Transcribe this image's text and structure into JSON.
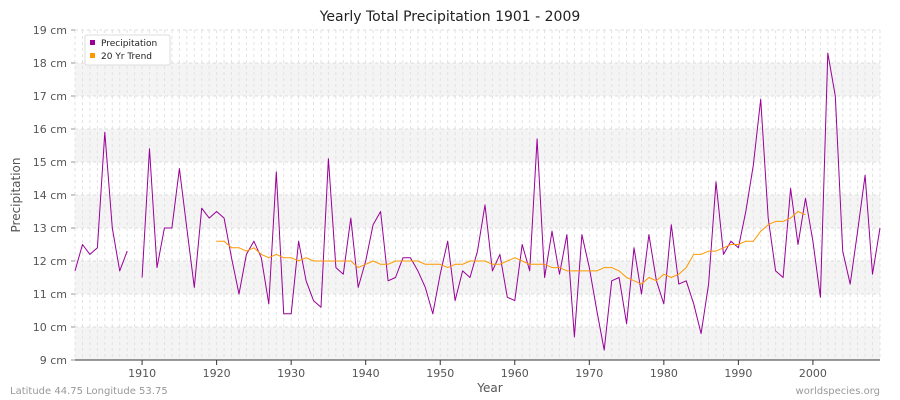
{
  "chart_data": {
    "type": "line",
    "title": "Yearly Total Precipitation 1901 - 2009",
    "xlabel": "Year",
    "ylabel": "Precipitation",
    "xlim": [
      1901,
      2009
    ],
    "ylim": [
      9,
      19
    ],
    "x_ticks": [
      1910,
      1920,
      1930,
      1940,
      1950,
      1960,
      1970,
      1980,
      1990,
      2000
    ],
    "y_ticks": [
      "9 cm",
      "10 cm",
      "11 cm",
      "12 cm",
      "13 cm",
      "14 cm",
      "15 cm",
      "16 cm",
      "17 cm",
      "18 cm",
      "19 cm"
    ],
    "grid": true,
    "legend_position": "top-left",
    "series": [
      {
        "name": "Precipitation",
        "color": "#990099",
        "x": [
          1901,
          1902,
          1903,
          1904,
          1905,
          1906,
          1907,
          1908,
          null,
          1910,
          1911,
          1912,
          1913,
          1914,
          1915,
          1916,
          1917,
          1918,
          1919,
          1920,
          1921,
          1922,
          1923,
          1924,
          1925,
          1926,
          1927,
          1928,
          1929,
          1930,
          1931,
          1932,
          1933,
          1934,
          1935,
          1936,
          1937,
          1938,
          1939,
          1940,
          1941,
          1942,
          1943,
          1944,
          1945,
          1946,
          1947,
          1948,
          1949,
          1950,
          1951,
          1952,
          1953,
          1954,
          1955,
          1956,
          1957,
          1958,
          1959,
          1960,
          1961,
          1962,
          1963,
          1964,
          1965,
          1966,
          1967,
          1968,
          1969,
          1970,
          1971,
          1972,
          1973,
          1974,
          1975,
          1976,
          1977,
          1978,
          1979,
          1980,
          1981,
          1982,
          1983,
          1984,
          1985,
          1986,
          1987,
          1988,
          1989,
          1990,
          1991,
          1992,
          1993,
          1994,
          1995,
          1996,
          1997,
          1998,
          1999,
          2000,
          2001,
          2002,
          2003,
          2004,
          2005,
          2006,
          2007,
          2008,
          2009
        ],
        "y": [
          11.7,
          12.5,
          12.2,
          12.4,
          15.9,
          13.0,
          11.7,
          12.3,
          null,
          11.5,
          15.4,
          11.8,
          13.0,
          13.0,
          14.8,
          13.0,
          11.2,
          13.6,
          13.3,
          13.5,
          13.3,
          12.1,
          11.0,
          12.2,
          12.6,
          12.1,
          10.7,
          14.7,
          10.4,
          10.4,
          12.6,
          11.4,
          10.8,
          10.6,
          15.1,
          11.8,
          11.6,
          13.3,
          11.2,
          12.0,
          13.1,
          13.5,
          11.4,
          11.5,
          12.1,
          12.1,
          11.7,
          11.2,
          10.4,
          11.6,
          12.6,
          10.8,
          11.7,
          11.5,
          12.3,
          13.7,
          11.7,
          12.2,
          10.9,
          10.8,
          12.5,
          11.7,
          15.7,
          11.5,
          12.9,
          11.6,
          12.8,
          9.7,
          12.8,
          11.8,
          10.5,
          9.3,
          11.4,
          11.5,
          10.1,
          12.4,
          11.0,
          12.8,
          11.4,
          10.7,
          13.1,
          11.3,
          11.4,
          10.7,
          9.8,
          11.3,
          14.4,
          12.2,
          12.6,
          12.4,
          13.5,
          14.9,
          16.9,
          13.3,
          11.7,
          11.5,
          14.2,
          12.5,
          13.9,
          12.6,
          10.9,
          18.3,
          17.0,
          12.3,
          11.3,
          12.9,
          14.6,
          11.6,
          13.0
        ]
      },
      {
        "name": "20 Yr Trend",
        "color": "#ff9900",
        "x": [
          1920,
          1921,
          1922,
          1923,
          1924,
          1925,
          1926,
          1927,
          1928,
          1929,
          1930,
          1931,
          1932,
          1933,
          1934,
          1935,
          1936,
          1937,
          1938,
          1939,
          1940,
          1941,
          1942,
          1943,
          1944,
          1945,
          1946,
          1947,
          1948,
          1949,
          1950,
          1951,
          1952,
          1953,
          1954,
          1955,
          1956,
          1957,
          1958,
          1959,
          1960,
          1961,
          1962,
          1963,
          1964,
          1965,
          1966,
          1967,
          1968,
          1969,
          1970,
          1971,
          1972,
          1973,
          1974,
          1975,
          1976,
          1977,
          1978,
          1979,
          1980,
          1981,
          1982,
          1983,
          1984,
          1985,
          1986,
          1987,
          1988,
          1989,
          1990,
          1991,
          1992,
          1993,
          1994,
          1995,
          1996,
          1997,
          1998,
          1999
        ],
        "y": [
          12.6,
          12.6,
          12.4,
          12.4,
          12.3,
          12.4,
          12.2,
          12.1,
          12.2,
          12.1,
          12.1,
          12.0,
          12.1,
          12.0,
          12.0,
          12.0,
          12.0,
          12.0,
          12.0,
          11.8,
          11.9,
          12.0,
          11.9,
          11.9,
          12.0,
          12.0,
          12.0,
          12.0,
          11.9,
          11.9,
          11.9,
          11.8,
          11.9,
          11.9,
          12.0,
          12.0,
          12.0,
          11.9,
          11.9,
          12.0,
          12.1,
          12.0,
          11.9,
          11.9,
          11.9,
          11.8,
          11.8,
          11.7,
          11.7,
          11.7,
          11.7,
          11.7,
          11.8,
          11.8,
          11.7,
          11.5,
          11.4,
          11.3,
          11.5,
          11.4,
          11.6,
          11.5,
          11.6,
          11.8,
          12.2,
          12.2,
          12.3,
          12.3,
          12.4,
          12.5,
          12.5,
          12.6,
          12.6,
          12.9,
          13.1,
          13.2,
          13.2,
          13.3,
          13.5,
          13.4
        ]
      }
    ]
  },
  "footer": {
    "location": "Latitude 44.75 Longitude 53.75",
    "source": "worldspecies.org"
  }
}
